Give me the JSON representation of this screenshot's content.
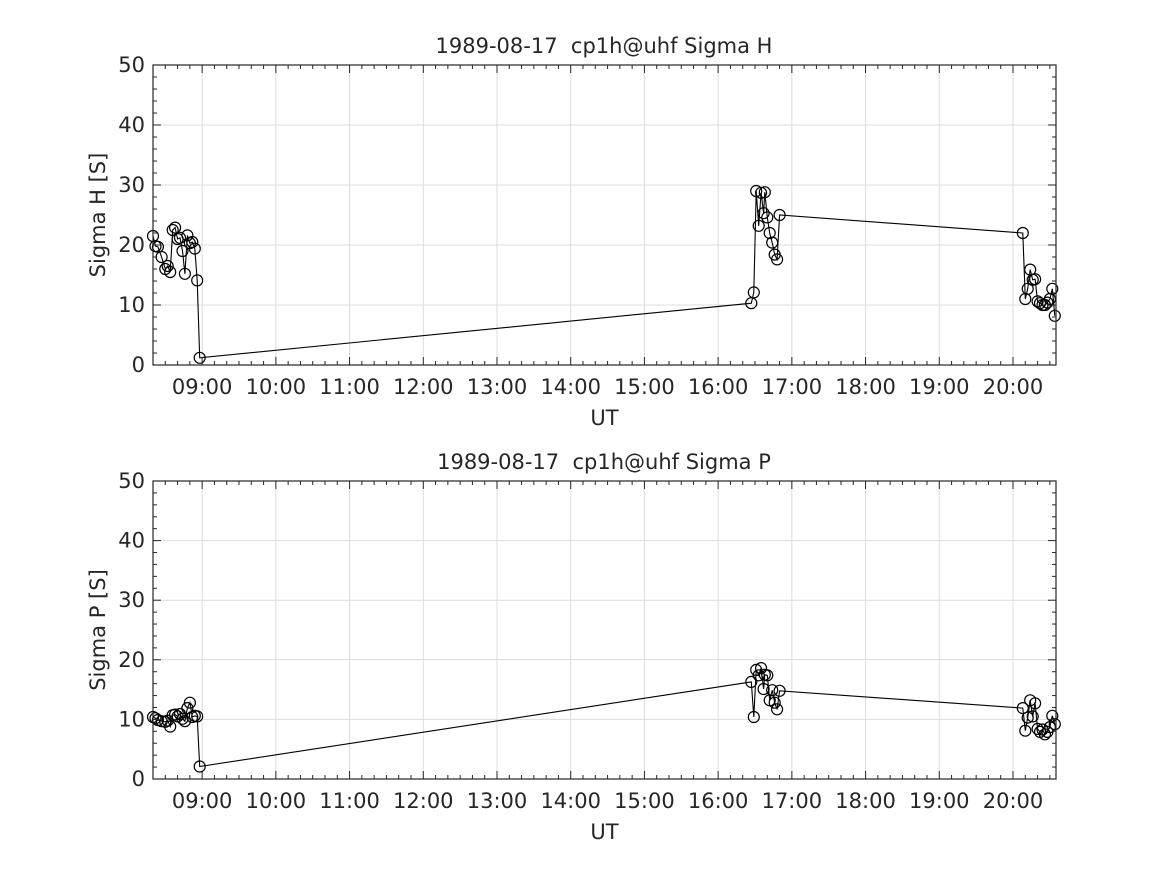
{
  "chart_data": [
    {
      "type": "line",
      "title": "1989-08-17  cp1h@uhf Sigma H",
      "xlabel": "UT",
      "ylabel": "Sigma H [S]",
      "xlim": [
        "08:20",
        "20:35"
      ],
      "ylim": [
        0,
        50
      ],
      "yticks": [
        0,
        10,
        20,
        30,
        40,
        50
      ],
      "xticks": [
        "09:00",
        "10:00",
        "11:00",
        "12:00",
        "13:00",
        "14:00",
        "15:00",
        "16:00",
        "17:00",
        "18:00",
        "19:00",
        "20:00"
      ],
      "grid": true,
      "marker": "open-circle",
      "color": "#000000",
      "series": [
        {
          "x": [
            "08:20",
            "08:22",
            "08:24",
            "08:27",
            "08:30",
            "08:32",
            "08:34",
            "08:36",
            "08:38",
            "08:40",
            "08:42",
            "08:44",
            "08:46",
            "08:48",
            "08:50",
            "08:52",
            "08:54",
            "08:56",
            "08:58",
            "09:00",
            "16:27",
            "16:29",
            "16:31",
            "16:33",
            "16:35",
            "16:37",
            "16:38",
            "16:40",
            "16:42",
            "16:44",
            "16:46",
            "16:48",
            "16:50",
            "20:08",
            "20:10",
            "20:12",
            "20:14",
            "20:16",
            "20:18",
            "20:20",
            "20:22",
            "20:24",
            "20:26",
            "20:28",
            "20:30",
            "20:32",
            "20:34"
          ],
          "y": [
            21.5,
            19.8,
            19.7,
            18,
            16,
            16.5,
            15.5,
            22.5,
            22.9,
            21,
            21.2,
            19,
            15.2,
            21.6,
            20.3,
            20.5,
            19.4,
            14.1,
            1.2,
            null,
            10.3,
            12.1,
            29.0,
            23.2,
            28.7,
            25.3,
            28.8,
            24.6,
            22.0,
            20.4,
            18.4,
            17.6,
            25.0,
            22.0,
            11.0,
            12.7,
            15.9,
            14.2,
            14.3,
            10.6,
            10.3,
            10.0,
            10.0,
            10.4,
            11.0,
            12.7,
            8.2
          ]
        }
      ]
    },
    {
      "type": "line",
      "title": "1989-08-17  cp1h@uhf Sigma P",
      "xlabel": "UT",
      "ylabel": "Sigma P [S]",
      "xlim": [
        "08:20",
        "20:35"
      ],
      "ylim": [
        0,
        50
      ],
      "yticks": [
        0,
        10,
        20,
        30,
        40,
        50
      ],
      "xticks": [
        "09:00",
        "10:00",
        "11:00",
        "12:00",
        "13:00",
        "14:00",
        "15:00",
        "16:00",
        "17:00",
        "18:00",
        "19:00",
        "20:00"
      ],
      "grid": true,
      "marker": "open-circle",
      "color": "#000000",
      "series": [
        {
          "x": [
            "08:20",
            "08:22",
            "08:24",
            "08:27",
            "08:30",
            "08:32",
            "08:34",
            "08:36",
            "08:38",
            "08:40",
            "08:42",
            "08:44",
            "08:46",
            "08:48",
            "08:50",
            "08:52",
            "08:54",
            "08:56",
            "08:58",
            "09:00",
            "16:27",
            "16:29",
            "16:31",
            "16:33",
            "16:35",
            "16:37",
            "16:38",
            "16:40",
            "16:42",
            "16:44",
            "16:46",
            "16:48",
            "16:50",
            "20:08",
            "20:10",
            "20:12",
            "20:14",
            "20:16",
            "20:18",
            "20:20",
            "20:22",
            "20:24",
            "20:26",
            "20:28",
            "20:30",
            "20:32",
            "20:34"
          ],
          "y": [
            10.4,
            10.2,
            9.9,
            9.7,
            9.6,
            9.8,
            8.8,
            10.7,
            10.8,
            10.5,
            10.9,
            10.1,
            9.7,
            11.9,
            12.8,
            10.4,
            10.6,
            10.5,
            2.1,
            null,
            16.3,
            10.4,
            18.3,
            17.4,
            18.6,
            15.1,
            17.5,
            17.4,
            13.2,
            14.9,
            12.8,
            11.7,
            14.8,
            11.9,
            8.1,
            10.3,
            13.2,
            10.5,
            12.7,
            8.4,
            7.9,
            8.3,
            7.5,
            7.9,
            8.7,
            10.6,
            9.2
          ]
        }
      ]
    }
  ]
}
